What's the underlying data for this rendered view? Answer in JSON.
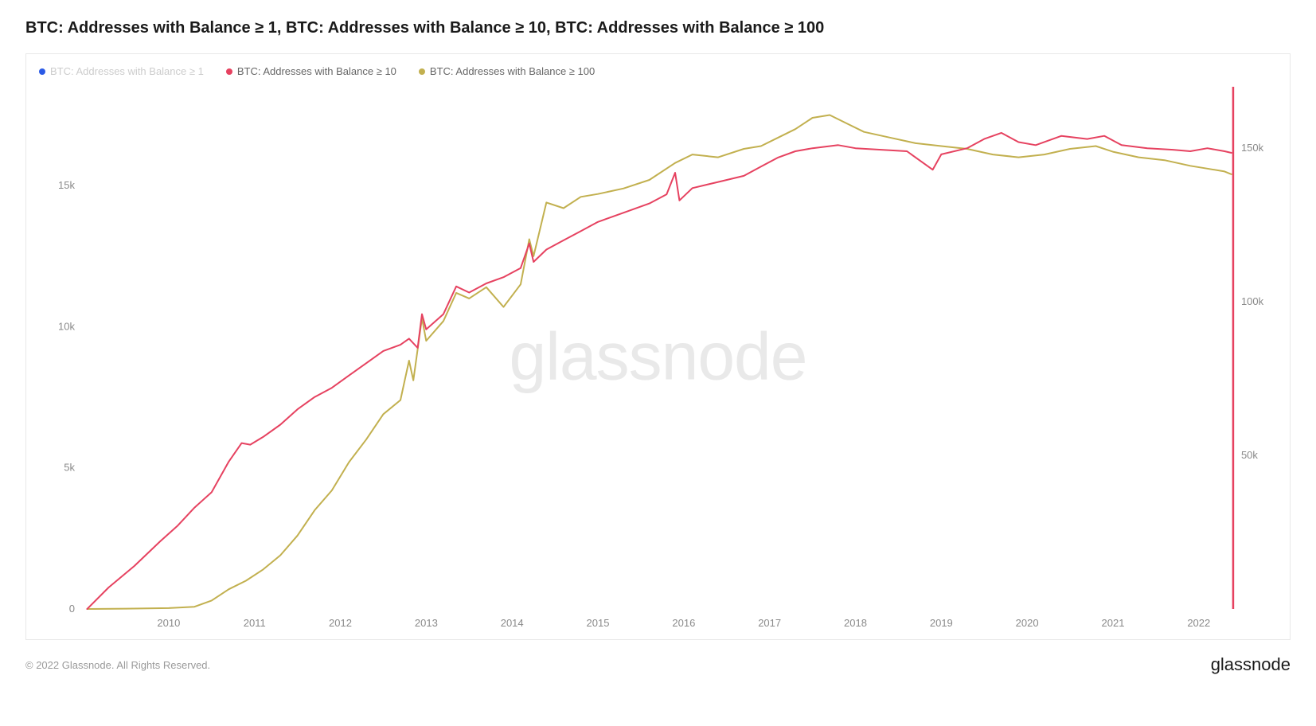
{
  "title": "BTC: Addresses with Balance ≥ 1, BTC: Addresses with Balance ≥ 10, BTC: Addresses with Balance ≥ 100",
  "legend": [
    {
      "label": "BTC: Addresses with Balance ≥ 1",
      "color": "#2b5ae6",
      "faded": true
    },
    {
      "label": "BTC: Addresses with Balance ≥ 10",
      "color": "#e64260",
      "faded": false
    },
    {
      "label": "BTC: Addresses with Balance ≥ 100",
      "color": "#c2b04f",
      "faded": false
    }
  ],
  "chart": {
    "type": "line",
    "background_color": "#ffffff",
    "border_color": "#e8e8e8",
    "axis_text_color": "#8a8a8a",
    "line_width": 2,
    "watermark": "glassnode",
    "x": {
      "min": 2009.0,
      "max": 2022.4,
      "ticks": [
        2010,
        2011,
        2012,
        2013,
        2014,
        2015,
        2016,
        2017,
        2018,
        2019,
        2020,
        2021,
        2022
      ]
    },
    "y_left": {
      "min": 0,
      "max": 18500,
      "ticks": [
        {
          "v": 0,
          "label": "0"
        },
        {
          "v": 5000,
          "label": "5k"
        },
        {
          "v": 10000,
          "label": "10k"
        },
        {
          "v": 15000,
          "label": "15k"
        }
      ]
    },
    "y_right": {
      "min": 0,
      "max": 170000,
      "ticks": [
        {
          "v": 50000,
          "label": "50k"
        },
        {
          "v": 100000,
          "label": "100k"
        },
        {
          "v": 150000,
          "label": "150k"
        }
      ]
    },
    "series": [
      {
        "name": "balance_gte_100",
        "color": "#c2b04f",
        "axis": "left",
        "points": [
          [
            2009.05,
            0
          ],
          [
            2009.5,
            10
          ],
          [
            2010.0,
            30
          ],
          [
            2010.3,
            80
          ],
          [
            2010.5,
            300
          ],
          [
            2010.7,
            700
          ],
          [
            2010.9,
            1000
          ],
          [
            2011.1,
            1400
          ],
          [
            2011.3,
            1900
          ],
          [
            2011.5,
            2600
          ],
          [
            2011.7,
            3500
          ],
          [
            2011.9,
            4200
          ],
          [
            2012.1,
            5200
          ],
          [
            2012.3,
            6000
          ],
          [
            2012.5,
            6900
          ],
          [
            2012.7,
            7400
          ],
          [
            2012.8,
            8800
          ],
          [
            2012.85,
            8100
          ],
          [
            2012.95,
            10300
          ],
          [
            2013.0,
            9500
          ],
          [
            2013.2,
            10200
          ],
          [
            2013.35,
            11200
          ],
          [
            2013.5,
            11000
          ],
          [
            2013.7,
            11400
          ],
          [
            2013.9,
            10700
          ],
          [
            2014.1,
            11500
          ],
          [
            2014.2,
            13100
          ],
          [
            2014.25,
            12500
          ],
          [
            2014.4,
            14400
          ],
          [
            2014.6,
            14200
          ],
          [
            2014.8,
            14600
          ],
          [
            2015.0,
            14700
          ],
          [
            2015.3,
            14900
          ],
          [
            2015.6,
            15200
          ],
          [
            2015.9,
            15800
          ],
          [
            2016.1,
            16100
          ],
          [
            2016.4,
            16000
          ],
          [
            2016.7,
            16300
          ],
          [
            2016.9,
            16400
          ],
          [
            2017.1,
            16700
          ],
          [
            2017.3,
            17000
          ],
          [
            2017.5,
            17400
          ],
          [
            2017.7,
            17500
          ],
          [
            2017.9,
            17200
          ],
          [
            2018.1,
            16900
          ],
          [
            2018.4,
            16700
          ],
          [
            2018.7,
            16500
          ],
          [
            2019.0,
            16400
          ],
          [
            2019.3,
            16300
          ],
          [
            2019.6,
            16100
          ],
          [
            2019.9,
            16000
          ],
          [
            2020.2,
            16100
          ],
          [
            2020.5,
            16300
          ],
          [
            2020.8,
            16400
          ],
          [
            2021.0,
            16200
          ],
          [
            2021.3,
            16000
          ],
          [
            2021.6,
            15900
          ],
          [
            2021.9,
            15700
          ],
          [
            2022.1,
            15600
          ],
          [
            2022.3,
            15500
          ],
          [
            2022.38,
            15400
          ]
        ]
      },
      {
        "name": "balance_gte_10",
        "color": "#e64260",
        "axis": "right",
        "points": [
          [
            2009.05,
            0
          ],
          [
            2009.3,
            7000
          ],
          [
            2009.6,
            14000
          ],
          [
            2009.9,
            22000
          ],
          [
            2010.1,
            27000
          ],
          [
            2010.3,
            33000
          ],
          [
            2010.5,
            38000
          ],
          [
            2010.7,
            48000
          ],
          [
            2010.85,
            54000
          ],
          [
            2010.95,
            53500
          ],
          [
            2011.1,
            56000
          ],
          [
            2011.3,
            60000
          ],
          [
            2011.5,
            65000
          ],
          [
            2011.7,
            69000
          ],
          [
            2011.9,
            72000
          ],
          [
            2012.1,
            76000
          ],
          [
            2012.3,
            80000
          ],
          [
            2012.5,
            84000
          ],
          [
            2012.7,
            86000
          ],
          [
            2012.8,
            88000
          ],
          [
            2012.9,
            85000
          ],
          [
            2012.95,
            96000
          ],
          [
            2013.0,
            91000
          ],
          [
            2013.2,
            96000
          ],
          [
            2013.35,
            105000
          ],
          [
            2013.5,
            103000
          ],
          [
            2013.7,
            106000
          ],
          [
            2013.9,
            108000
          ],
          [
            2014.1,
            111000
          ],
          [
            2014.2,
            119000
          ],
          [
            2014.25,
            113000
          ],
          [
            2014.4,
            117000
          ],
          [
            2014.6,
            120000
          ],
          [
            2014.8,
            123000
          ],
          [
            2015.0,
            126000
          ],
          [
            2015.3,
            129000
          ],
          [
            2015.6,
            132000
          ],
          [
            2015.8,
            135000
          ],
          [
            2015.9,
            142000
          ],
          [
            2015.95,
            133000
          ],
          [
            2016.1,
            137000
          ],
          [
            2016.4,
            139000
          ],
          [
            2016.7,
            141000
          ],
          [
            2016.9,
            144000
          ],
          [
            2017.1,
            147000
          ],
          [
            2017.3,
            149000
          ],
          [
            2017.5,
            150000
          ],
          [
            2017.8,
            151000
          ],
          [
            2018.0,
            150000
          ],
          [
            2018.3,
            149500
          ],
          [
            2018.6,
            149000
          ],
          [
            2018.9,
            143000
          ],
          [
            2019.0,
            148000
          ],
          [
            2019.3,
            150000
          ],
          [
            2019.5,
            153000
          ],
          [
            2019.7,
            155000
          ],
          [
            2019.9,
            152000
          ],
          [
            2020.1,
            151000
          ],
          [
            2020.4,
            154000
          ],
          [
            2020.7,
            153000
          ],
          [
            2020.9,
            154000
          ],
          [
            2021.1,
            151000
          ],
          [
            2021.4,
            150000
          ],
          [
            2021.7,
            149500
          ],
          [
            2021.9,
            149000
          ],
          [
            2022.1,
            150000
          ],
          [
            2022.3,
            149000
          ],
          [
            2022.38,
            148500
          ]
        ]
      }
    ],
    "right_edge_marker": {
      "color": "#e64260",
      "x": 2022.4
    }
  },
  "footer": {
    "copyright": "© 2022 Glassnode. All Rights Reserved.",
    "brand": "glassnode"
  }
}
